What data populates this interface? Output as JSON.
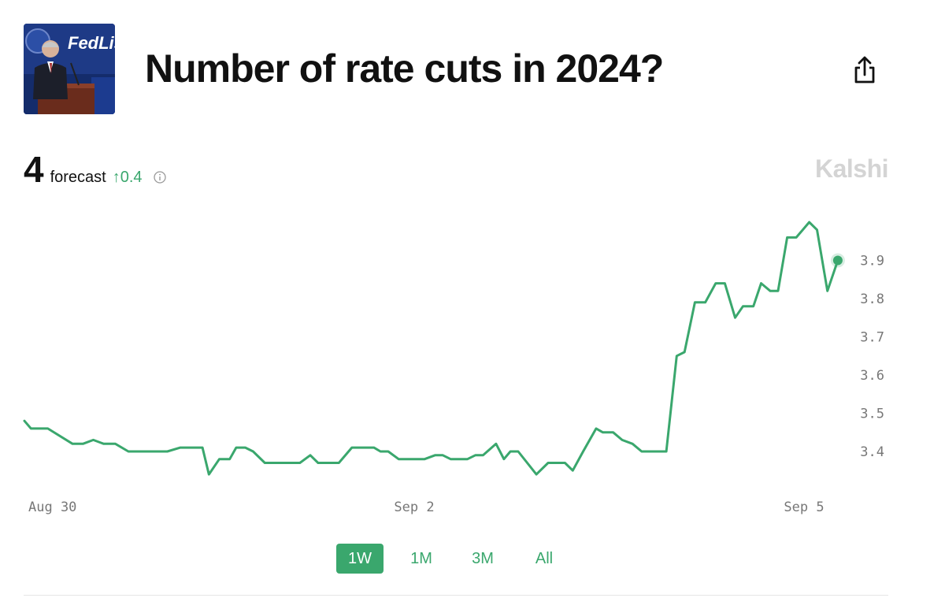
{
  "header": {
    "title": "Number of rate cuts in 2024?",
    "thumbnail_text": "FedListens",
    "share_icon": "share-icon"
  },
  "forecast": {
    "value": "4",
    "label": "forecast",
    "change": "↑0.4",
    "info_icon": "info-icon"
  },
  "brand": "Kalshi",
  "colors": {
    "accent": "#3aa76d",
    "brand_text": "#d4d4d4",
    "axis_text": "#777777"
  },
  "range_tabs": {
    "active": "1W",
    "items": [
      "1W",
      "1M",
      "3M",
      "All"
    ]
  },
  "chart_data": {
    "type": "line",
    "x_start": "Aug 30",
    "x_end": "Sep 5",
    "x_ticks": [
      {
        "label": "Aug 30",
        "x": 0
      },
      {
        "label": "Sep 2",
        "x": 3
      },
      {
        "label": "Sep 5",
        "x": 6
      }
    ],
    "y_ticks": [
      3.4,
      3.5,
      3.6,
      3.7,
      3.8,
      3.9
    ],
    "ylim": [
      3.31,
      4.0
    ],
    "grid": false,
    "series": [
      {
        "color": "#3aa76d",
        "points": [
          [
            0.0,
            3.48
          ],
          [
            0.05,
            3.46
          ],
          [
            0.18,
            3.46
          ],
          [
            0.37,
            3.42
          ],
          [
            0.45,
            3.42
          ],
          [
            0.53,
            3.43
          ],
          [
            0.61,
            3.42
          ],
          [
            0.7,
            3.42
          ],
          [
            0.8,
            3.4
          ],
          [
            1.1,
            3.4
          ],
          [
            1.2,
            3.41
          ],
          [
            1.37,
            3.41
          ],
          [
            1.42,
            3.34
          ],
          [
            1.5,
            3.38
          ],
          [
            1.58,
            3.38
          ],
          [
            1.63,
            3.41
          ],
          [
            1.7,
            3.41
          ],
          [
            1.76,
            3.4
          ],
          [
            1.85,
            3.37
          ],
          [
            2.12,
            3.37
          ],
          [
            2.2,
            3.39
          ],
          [
            2.26,
            3.37
          ],
          [
            2.42,
            3.37
          ],
          [
            2.52,
            3.41
          ],
          [
            2.69,
            3.41
          ],
          [
            2.74,
            3.4
          ],
          [
            2.8,
            3.4
          ],
          [
            2.88,
            3.38
          ],
          [
            3.08,
            3.38
          ],
          [
            3.16,
            3.39
          ],
          [
            3.22,
            3.39
          ],
          [
            3.28,
            3.38
          ],
          [
            3.41,
            3.38
          ],
          [
            3.47,
            3.39
          ],
          [
            3.53,
            3.39
          ],
          [
            3.63,
            3.42
          ],
          [
            3.69,
            3.38
          ],
          [
            3.74,
            3.4
          ],
          [
            3.8,
            3.4
          ],
          [
            3.94,
            3.34
          ],
          [
            4.03,
            3.37
          ],
          [
            4.16,
            3.37
          ],
          [
            4.22,
            3.35
          ],
          [
            4.3,
            3.4
          ],
          [
            4.4,
            3.46
          ],
          [
            4.45,
            3.45
          ],
          [
            4.53,
            3.45
          ],
          [
            4.6,
            3.43
          ],
          [
            4.68,
            3.42
          ],
          [
            4.75,
            3.4
          ],
          [
            4.84,
            3.4
          ],
          [
            4.94,
            3.4
          ],
          [
            5.02,
            3.65
          ],
          [
            5.08,
            3.66
          ],
          [
            5.16,
            3.79
          ],
          [
            5.24,
            3.79
          ],
          [
            5.32,
            3.84
          ],
          [
            5.39,
            3.84
          ],
          [
            5.47,
            3.75
          ],
          [
            5.53,
            3.78
          ],
          [
            5.61,
            3.78
          ],
          [
            5.67,
            3.84
          ],
          [
            5.74,
            3.82
          ],
          [
            5.8,
            3.82
          ],
          [
            5.87,
            3.96
          ],
          [
            5.94,
            3.96
          ],
          [
            6.04,
            4.0
          ],
          [
            6.1,
            3.98
          ],
          [
            6.18,
            3.82
          ],
          [
            6.26,
            3.9
          ]
        ]
      }
    ]
  }
}
